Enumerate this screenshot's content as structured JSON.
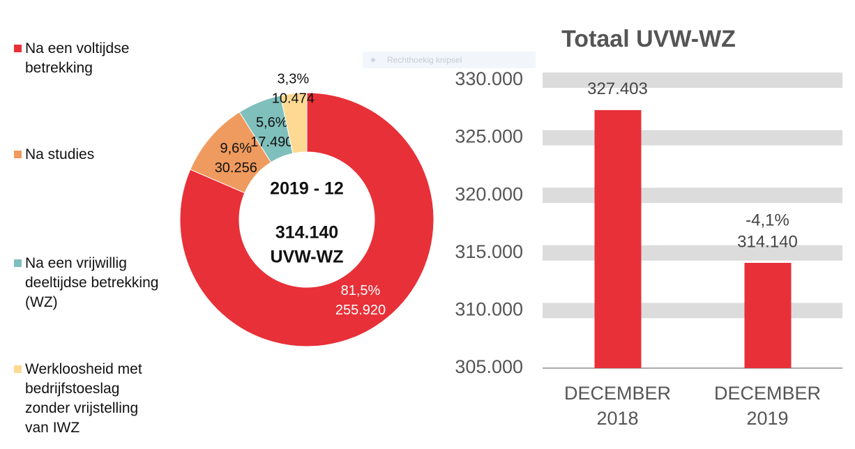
{
  "snip_label": "Rechthoekig knipsel",
  "chart_data": [
    {
      "type": "pie",
      "donut": true,
      "categories": [
        "Na een voltijdse\nbetrekking",
        "Na studies",
        "Na een vrijwillig\ndeeltijdse betrekking\n(WZ)",
        "Werkloosheid met\nbedrijfstoeslag\nzonder vrijstelling\nvan IWZ"
      ],
      "values": [
        255920,
        30256,
        17490,
        10474
      ],
      "value_labels": [
        "255.920",
        "30.256",
        "17.490",
        "10.474"
      ],
      "percent_labels": [
        "81,5%",
        "9,6%",
        "5,6%",
        "3,3%"
      ],
      "colors": [
        "#e83038",
        "#ef9a5e",
        "#7fbfbc",
        "#fdd993"
      ],
      "center_lines": [
        "2019 - 12",
        "314.140",
        "UVW-WZ"
      ],
      "legend": "left"
    },
    {
      "type": "bar",
      "title": "Totaal UVW-WZ",
      "categories": [
        "DECEMBER\n2018",
        "DECEMBER\n2019"
      ],
      "values": [
        327403,
        314140
      ],
      "value_labels": [
        "327.403",
        "314.140"
      ],
      "change_label": "-4,1%",
      "color": "#e83038",
      "ylim": [
        305000,
        330000
      ],
      "yticks": [
        {
          "value": 305000,
          "label": "305.000"
        },
        {
          "value": 310000,
          "label": "310.000"
        },
        {
          "value": 315000,
          "label": "315.000"
        },
        {
          "value": 320000,
          "label": "320.000"
        },
        {
          "value": 325000,
          "label": "325.000"
        },
        {
          "value": 330000,
          "label": "330.000"
        }
      ],
      "grid": "bands"
    }
  ]
}
